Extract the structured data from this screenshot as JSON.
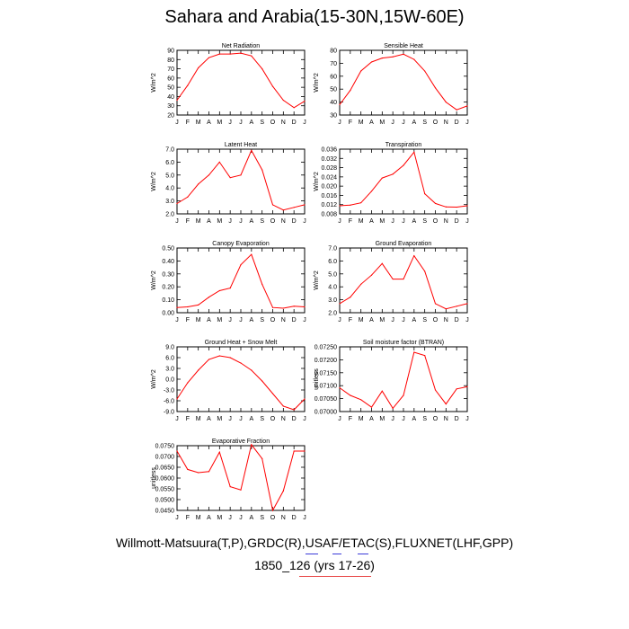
{
  "title": "Sahara and Arabia(15-30N,15W-60E)",
  "footer": {
    "line1": "Willmott-Matsuura(T,P),GRDC(R),USAF/ETAC(S),FLUXNET(LHF,GPP)",
    "line2": "1850_126 (yrs 17-26)"
  },
  "colors": {
    "series": "#ff0000",
    "axis": "#000000",
    "underline_blue": "#3b3bd9",
    "underline_red": "#e84a4a"
  },
  "months": [
    "J",
    "F",
    "M",
    "A",
    "M",
    "J",
    "J",
    "A",
    "S",
    "O",
    "N",
    "D",
    "J"
  ],
  "chart_data": [
    {
      "id": "net-radiation",
      "type": "line",
      "title": "Net Radiation",
      "ylabel": "W/m^2",
      "ylim": [
        20,
        90
      ],
      "yticks": [
        "90",
        "80",
        "70",
        "60",
        "50",
        "40",
        "30",
        "20"
      ],
      "values": [
        36,
        52,
        71,
        82,
        86,
        86,
        87,
        84,
        70,
        51,
        36,
        28,
        35
      ]
    },
    {
      "id": "sensible-heat",
      "type": "line",
      "title": "Sensible Heat",
      "ylabel": "W/m^2",
      "ylim": [
        30,
        80
      ],
      "yticks": [
        "80",
        "70",
        "60",
        "50",
        "40",
        "30"
      ],
      "values": [
        38,
        49,
        64,
        71,
        74,
        75,
        77,
        73,
        64,
        51,
        40,
        34,
        37
      ]
    },
    {
      "id": "latent-heat",
      "type": "line",
      "title": "Latent Heat",
      "ylabel": "W/m^2",
      "ylim": [
        2.0,
        7.0
      ],
      "yticks": [
        "7.0",
        "6.0",
        "5.0",
        "4.0",
        "3.0",
        "2.0"
      ],
      "values": [
        2.8,
        3.3,
        4.3,
        5.0,
        6.0,
        4.8,
        5.0,
        6.9,
        5.4,
        2.7,
        2.3,
        2.5,
        2.7
      ]
    },
    {
      "id": "transpiration",
      "type": "line",
      "title": "Transpiration",
      "ylabel": "W/m^2",
      "ylim": [
        0.008,
        0.036
      ],
      "yticks": [
        "0.036",
        "0.032",
        "0.028",
        "0.024",
        "0.020",
        "0.016",
        "0.012",
        "0.008"
      ],
      "values": [
        0.0115,
        0.0118,
        0.0128,
        0.0178,
        0.0235,
        0.0252,
        0.029,
        0.0347,
        0.0167,
        0.0125,
        0.011,
        0.0109,
        0.0115
      ]
    },
    {
      "id": "canopy-evaporation",
      "type": "line",
      "title": "Canopy Evaporation",
      "ylabel": "W/m^2",
      "ylim": [
        0.0,
        0.5
      ],
      "yticks": [
        "0.50",
        "0.40",
        "0.30",
        "0.20",
        "0.10",
        "0.00"
      ],
      "values": [
        0.04,
        0.045,
        0.06,
        0.12,
        0.17,
        0.19,
        0.37,
        0.45,
        0.22,
        0.04,
        0.035,
        0.05,
        0.045
      ]
    },
    {
      "id": "ground-evaporation",
      "type": "line",
      "title": "Ground Evaporation",
      "ylabel": "W/m^2",
      "ylim": [
        2.0,
        7.0
      ],
      "yticks": [
        "7.0",
        "6.0",
        "5.0",
        "4.0",
        "3.0",
        "2.0"
      ],
      "values": [
        2.7,
        3.2,
        4.2,
        4.9,
        5.8,
        4.6,
        4.6,
        6.4,
        5.2,
        2.7,
        2.3,
        2.5,
        2.7
      ]
    },
    {
      "id": "ground-heat-snow-melt",
      "type": "line",
      "title": "Ground Heat + Snow Melt",
      "ylabel": "W/m^2",
      "ylim": [
        -9.0,
        9.0
      ],
      "yticks": [
        "9.0",
        "6.0",
        "3.0",
        "0.0",
        "-3.0",
        "-6.0",
        "-9.0"
      ],
      "values": [
        -5.5,
        -1.0,
        2.5,
        5.5,
        6.5,
        6.0,
        4.5,
        2.5,
        -0.5,
        -4.0,
        -7.5,
        -8.5,
        -5.5
      ]
    },
    {
      "id": "soil-moisture-factor",
      "type": "line",
      "title": "Soil moisture factor (BTRAN)",
      "ylabel": "unitless",
      "ylim": [
        0.07,
        0.073
      ],
      "yticks": [
        "0.07250",
        "0.07200",
        "0.07150",
        "0.07100",
        "0.07050",
        "0.07000"
      ],
      "values": [
        0.0711,
        0.07075,
        0.07055,
        0.0702,
        0.07095,
        0.07015,
        0.07075,
        0.07275,
        0.0726,
        0.071,
        0.07035,
        0.07105,
        0.07115
      ]
    },
    {
      "id": "evaporative-fraction",
      "type": "line",
      "title": "Evaporative Fraction",
      "ylabel": "unitless",
      "ylim": [
        0.045,
        0.075
      ],
      "yticks": [
        "0.0750",
        "0.0700",
        "0.0650",
        "0.0600",
        "0.0550",
        "0.0500",
        "0.0450"
      ],
      "values": [
        0.0725,
        0.064,
        0.0625,
        0.063,
        0.072,
        0.056,
        0.0545,
        0.0755,
        0.069,
        0.045,
        0.054,
        0.0725,
        0.0725
      ]
    }
  ]
}
